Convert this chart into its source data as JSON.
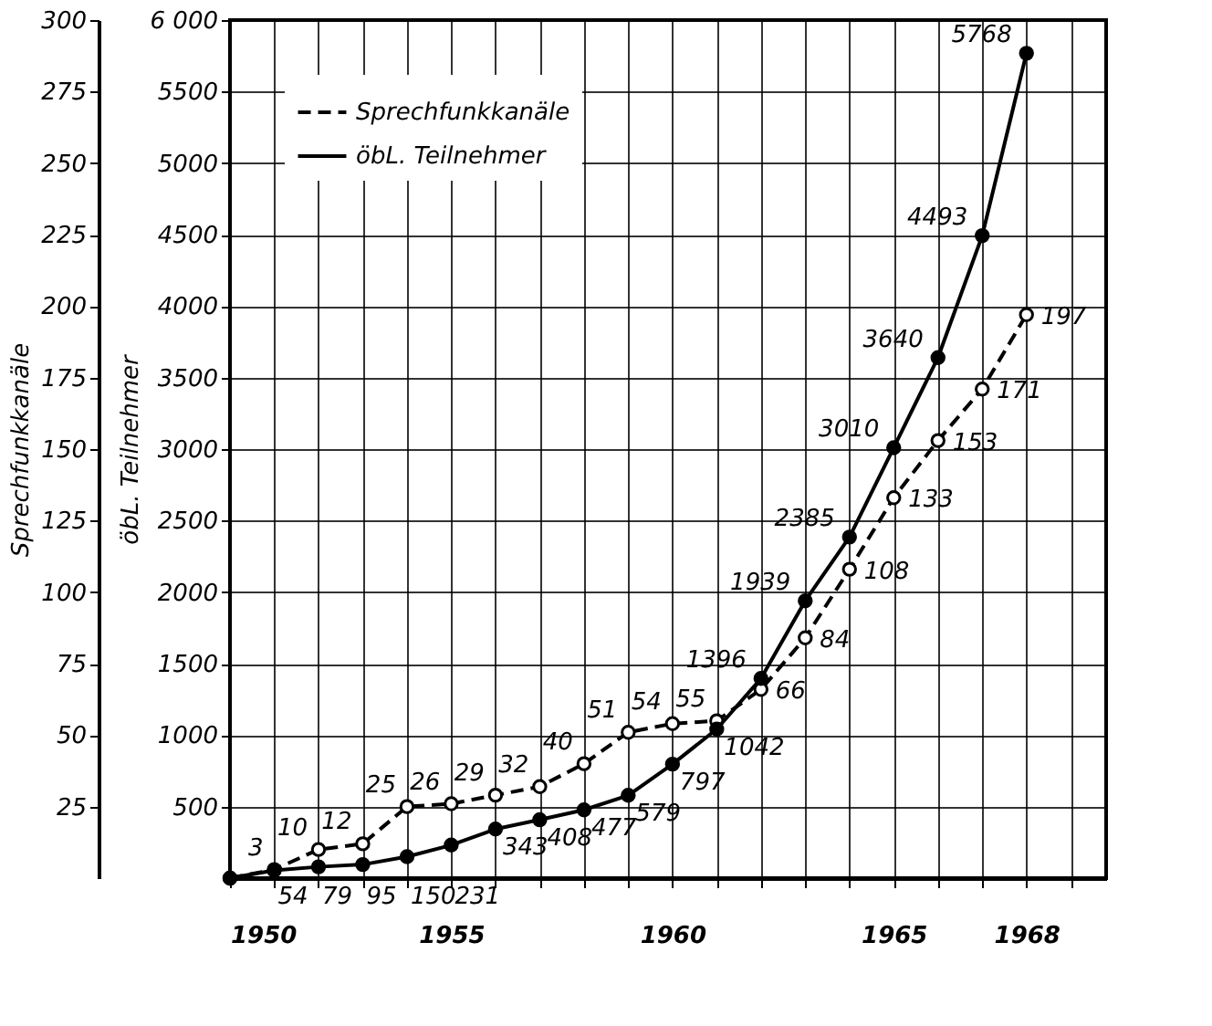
{
  "chart_data": {
    "type": "line",
    "xlabel": null,
    "ylabel": "Sprechfunkkanäle",
    "y2label": "öbL. Teilnehmer",
    "x": [
      1950,
      1951,
      1952,
      1953,
      1954,
      1955,
      1956,
      1957,
      1958,
      1959,
      1960,
      1961,
      1962,
      1963,
      1964,
      1965,
      1966,
      1967,
      1968
    ],
    "series": [
      {
        "name": "Sprechfunkkanäle",
        "color": "#000000",
        "line_style": "dashed",
        "marker": "circle",
        "values": [
          0,
          3,
          10,
          12,
          25,
          26,
          29,
          32,
          40,
          51,
          54,
          55,
          66,
          84,
          108,
          133,
          153,
          171,
          197
        ],
        "value_labels": [
          null,
          "3",
          "10",
          "12",
          "25",
          "26",
          "29",
          "32",
          "40",
          "51",
          "54",
          "55",
          "66",
          "84",
          "108",
          "133",
          "153",
          "171",
          "197"
        ]
      },
      {
        "name": "öbL. Teilnehmer",
        "color": "#000000",
        "line_style": "solid",
        "marker": "circle",
        "axis": "y2",
        "values": [
          0,
          54,
          79,
          95,
          150,
          231,
          343,
          408,
          477,
          579,
          797,
          1042,
          1396,
          1939,
          2385,
          3010,
          3640,
          4493,
          5768
        ],
        "value_labels": [
          null,
          "54",
          "79",
          "95",
          "150",
          "231",
          "343",
          "408",
          "477",
          "579",
          "797",
          "1042",
          "1396",
          "1939",
          "2385",
          "3010",
          "3640",
          "4493",
          "5768"
        ]
      }
    ],
    "xlim": [
      1950,
      1969.8
    ],
    "xticks": [
      1950,
      {
        "value": 1951,
        "label": null
      },
      {
        "value": 1952,
        "label": null
      },
      {
        "value": 1953,
        "label": null
      },
      {
        "value": 1954,
        "label": null
      },
      1955,
      {
        "value": 1956,
        "label": null
      },
      {
        "value": 1957,
        "label": null
      },
      {
        "value": 1958,
        "label": null
      },
      {
        "value": 1959,
        "label": null
      },
      1960,
      {
        "value": 1961,
        "label": null
      },
      {
        "value": 1962,
        "label": null
      },
      {
        "value": 1963,
        "label": null
      },
      {
        "value": 1964,
        "label": null
      },
      1965,
      {
        "value": 1966,
        "label": null
      },
      {
        "value": 1967,
        "label": null
      },
      1968,
      {
        "value": 1969,
        "label": null
      }
    ],
    "ylim": [
      0,
      300
    ],
    "yticks": [
      25,
      50,
      75,
      100,
      125,
      150,
      175,
      200,
      225,
      250,
      275,
      300
    ],
    "y2lim": [
      0,
      6000
    ],
    "y2ticks": [
      500,
      1000,
      1500,
      2000,
      2500,
      3000,
      3500,
      4000,
      4500,
      5000,
      5500,
      {
        "value": 6000,
        "label": "6 000"
      }
    ],
    "grid": true,
    "legend": "top left"
  }
}
